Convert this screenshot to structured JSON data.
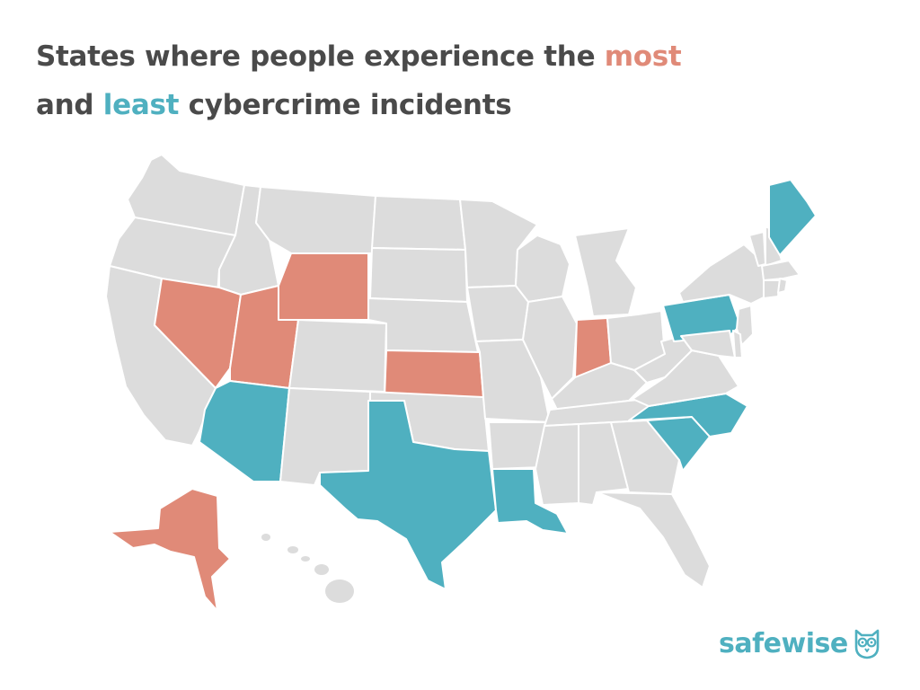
{
  "title": {
    "line1_prefix": "States where people experience the ",
    "line1_highlight": "most",
    "line2_prefix": "and ",
    "line2_highlight": "least",
    "line2_suffix": " cybercrime incidents"
  },
  "colors": {
    "most": "#e08a78",
    "least": "#4fb0c0",
    "neutral": "#dcdcdc",
    "border": "#ffffff",
    "title": "#4a4a4a"
  },
  "map": {
    "most_states": [
      "Nevada",
      "Utah",
      "Wyoming",
      "Kansas",
      "Indiana",
      "Alaska"
    ],
    "least_states": [
      "Arizona",
      "Texas",
      "Louisiana",
      "South Carolina",
      "North Carolina",
      "Pennsylvania",
      "Maine"
    ]
  },
  "brand": {
    "name": "safewise",
    "icon": "owl-icon"
  }
}
